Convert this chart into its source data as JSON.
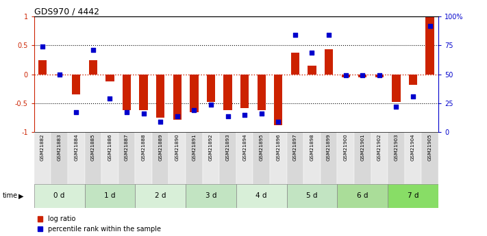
{
  "title": "GDS970 / 4442",
  "samples": [
    "GSM21882",
    "GSM21883",
    "GSM21884",
    "GSM21885",
    "GSM21886",
    "GSM21887",
    "GSM21888",
    "GSM21889",
    "GSM21890",
    "GSM21891",
    "GSM21892",
    "GSM21893",
    "GSM21894",
    "GSM21895",
    "GSM21896",
    "GSM21897",
    "GSM21898",
    "GSM21899",
    "GSM21900",
    "GSM21901",
    "GSM21902",
    "GSM21903",
    "GSM21904",
    "GSM21905"
  ],
  "log_ratio": [
    0.25,
    -0.02,
    -0.35,
    0.25,
    -0.12,
    -0.62,
    -0.62,
    -0.75,
    -0.78,
    -0.65,
    -0.48,
    -0.62,
    -0.58,
    -0.62,
    -0.88,
    0.38,
    0.15,
    0.43,
    -0.05,
    -0.05,
    -0.05,
    -0.48,
    -0.18,
    1.0
  ],
  "percentile_rank_pct": [
    74,
    50,
    17,
    71,
    29,
    17,
    16,
    9,
    14,
    19,
    24,
    14,
    15,
    16,
    9,
    84,
    69,
    84,
    49,
    49,
    49,
    22,
    31,
    92
  ],
  "time_groups": [
    {
      "label": "0 d",
      "start": 0,
      "end": 3,
      "color": "#d8efd8"
    },
    {
      "label": "1 d",
      "start": 3,
      "end": 6,
      "color": "#c2e4c2"
    },
    {
      "label": "2 d",
      "start": 6,
      "end": 9,
      "color": "#d8efd8"
    },
    {
      "label": "3 d",
      "start": 9,
      "end": 12,
      "color": "#c2e4c2"
    },
    {
      "label": "4 d",
      "start": 12,
      "end": 15,
      "color": "#d8efd8"
    },
    {
      "label": "5 d",
      "start": 15,
      "end": 18,
      "color": "#c2e4c2"
    },
    {
      "label": "6 d",
      "start": 18,
      "end": 21,
      "color": "#aadd99"
    },
    {
      "label": "7 d",
      "start": 21,
      "end": 24,
      "color": "#88dd66"
    }
  ],
  "bar_color": "#cc2200",
  "dot_color": "#0000cc",
  "axis_color_left": "#cc2200",
  "axis_color_right": "#0000cc",
  "ylim": [
    -1,
    1
  ],
  "right_ylim": [
    0,
    100
  ],
  "bar_width": 0.5,
  "dot_size": 18,
  "bg_color_light": "#e8e8e8",
  "bg_color_dark": "#d8d8d8"
}
